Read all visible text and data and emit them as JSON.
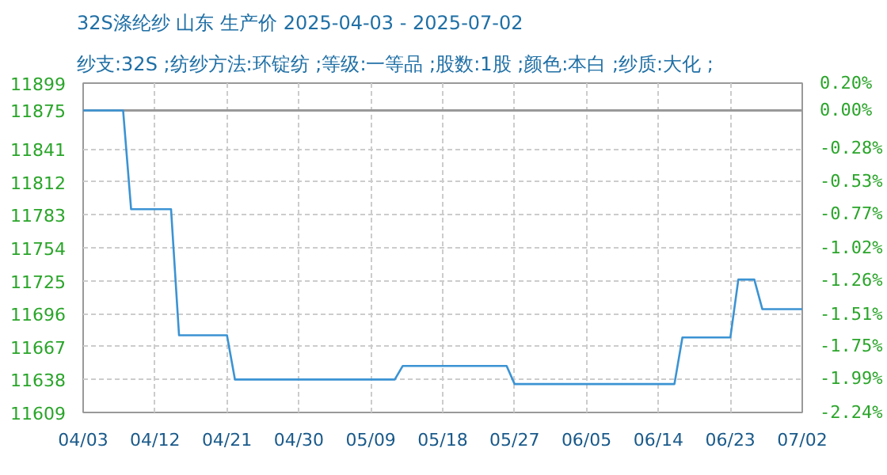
{
  "chart_data": {
    "type": "line",
    "title": "32S涤纶纱 山东 生产价 2025-04-03 - 2025-07-02",
    "subtitle": "纱支:32S ;纺纱方法:环锭纺 ;等级:一等品 ;股数:1股 ;颜色:本白 ;纱质:大化 ;",
    "x": [
      "2025-04-03",
      "2025-04-08",
      "2025-04-09",
      "2025-04-14",
      "2025-04-15",
      "2025-04-21",
      "2025-04-22",
      "2025-05-12",
      "2025-05-13",
      "2025-05-26",
      "2025-05-27",
      "2025-06-16",
      "2025-06-17",
      "2025-06-23",
      "2025-06-24",
      "2025-06-26",
      "2025-06-27",
      "2025-07-02"
    ],
    "series": [
      {
        "color": "#3b93d3",
        "values": [
          11875,
          11875,
          11788,
          11788,
          11677,
          11677,
          11638,
          11638,
          11650,
          11650,
          11634,
          11634,
          11675,
          11675,
          11726,
          11726,
          11700,
          11700
        ]
      }
    ],
    "xlim": [
      "2025-04-03",
      "2025-07-02"
    ],
    "xticks": [
      {
        "value": "2025-04-03",
        "label": "04/03"
      },
      {
        "value": "2025-04-12",
        "label": "04/12"
      },
      {
        "value": "2025-04-21",
        "label": "04/21"
      },
      {
        "value": "2025-04-30",
        "label": "04/30"
      },
      {
        "value": "2025-05-09",
        "label": "05/09"
      },
      {
        "value": "2025-05-18",
        "label": "05/18"
      },
      {
        "value": "2025-05-27",
        "label": "05/27"
      },
      {
        "value": "2025-06-05",
        "label": "06/05"
      },
      {
        "value": "2025-06-14",
        "label": "06/14"
      },
      {
        "value": "2025-06-23",
        "label": "06/23"
      },
      {
        "value": "2025-07-02",
        "label": "07/02"
      }
    ],
    "ylim": [
      11609,
      11899
    ],
    "yticks": [
      11609,
      11638,
      11667,
      11696,
      11725,
      11754,
      11783,
      11812,
      11841,
      11875,
      11899
    ],
    "y2lim": [
      -2.24,
      0.2
    ],
    "y2ticks": [
      {
        "value": -2.24,
        "label": "-2.24%"
      },
      {
        "value": -1.99,
        "label": "-1.99%"
      },
      {
        "value": -1.75,
        "label": "-1.75%"
      },
      {
        "value": -1.51,
        "label": "-1.51%"
      },
      {
        "value": -1.26,
        "label": "-1.26%"
      },
      {
        "value": -1.02,
        "label": "-1.02%"
      },
      {
        "value": -0.77,
        "label": "-0.77%"
      },
      {
        "value": -0.53,
        "label": "-0.53%"
      },
      {
        "value": -0.28,
        "label": "-0.28%"
      },
      {
        "value": 0.0,
        "label": "0.00%"
      },
      {
        "value": 0.2,
        "label": "0.20%"
      }
    ],
    "ref_lines": [
      {
        "axis": "y",
        "value": 11875,
        "color": "#999999"
      }
    ],
    "grid": true
  }
}
